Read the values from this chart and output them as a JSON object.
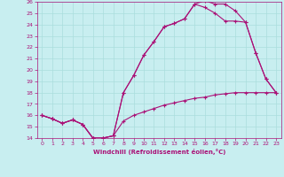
{
  "xlabel": "Windchill (Refroidissement éolien,°C)",
  "bg_color": "#c8eef0",
  "line_color": "#aa1177",
  "grid_color": "#aadddd",
  "xlim": [
    -0.5,
    23.5
  ],
  "ylim": [
    14,
    26
  ],
  "xticks": [
    0,
    1,
    2,
    3,
    4,
    5,
    6,
    7,
    8,
    9,
    10,
    11,
    12,
    13,
    14,
    15,
    16,
    17,
    18,
    19,
    20,
    21,
    22,
    23
  ],
  "yticks": [
    14,
    15,
    16,
    17,
    18,
    19,
    20,
    21,
    22,
    23,
    24,
    25,
    26
  ],
  "line1_x": [
    0,
    1,
    2,
    3,
    4,
    5,
    6,
    7,
    8,
    9,
    10,
    11,
    12,
    13,
    14,
    15,
    16,
    17,
    18,
    19,
    20,
    21,
    22,
    23
  ],
  "line1_y": [
    16,
    15.7,
    15.3,
    15.6,
    15.2,
    14.0,
    14.0,
    14.2,
    15.5,
    16.0,
    16.3,
    16.6,
    16.9,
    17.1,
    17.3,
    17.5,
    17.6,
    17.8,
    17.9,
    18.0,
    18.0,
    18.0,
    18.0,
    18.0
  ],
  "line2_x": [
    0,
    1,
    2,
    3,
    4,
    5,
    6,
    7,
    8,
    9,
    10,
    11,
    12,
    13,
    14,
    15,
    16,
    17,
    18,
    19,
    20,
    21,
    22,
    23
  ],
  "line2_y": [
    16,
    15.7,
    15.3,
    15.6,
    15.2,
    14.0,
    14.0,
    14.2,
    18.0,
    19.5,
    21.3,
    22.5,
    23.8,
    24.1,
    24.5,
    25.8,
    26.1,
    25.8,
    25.8,
    25.2,
    24.2,
    21.5,
    19.2,
    18.0
  ],
  "line3_x": [
    0,
    1,
    2,
    3,
    4,
    5,
    6,
    7,
    8,
    9,
    10,
    11,
    12,
    13,
    14,
    15,
    16,
    17,
    18,
    19,
    20,
    21,
    22,
    23
  ],
  "line3_y": [
    16,
    15.7,
    15.3,
    15.6,
    15.2,
    14.0,
    14.0,
    14.2,
    18.0,
    19.5,
    21.3,
    22.5,
    23.8,
    24.1,
    24.5,
    25.8,
    25.5,
    25.0,
    24.3,
    24.3,
    24.2,
    21.5,
    19.2,
    18.0
  ]
}
